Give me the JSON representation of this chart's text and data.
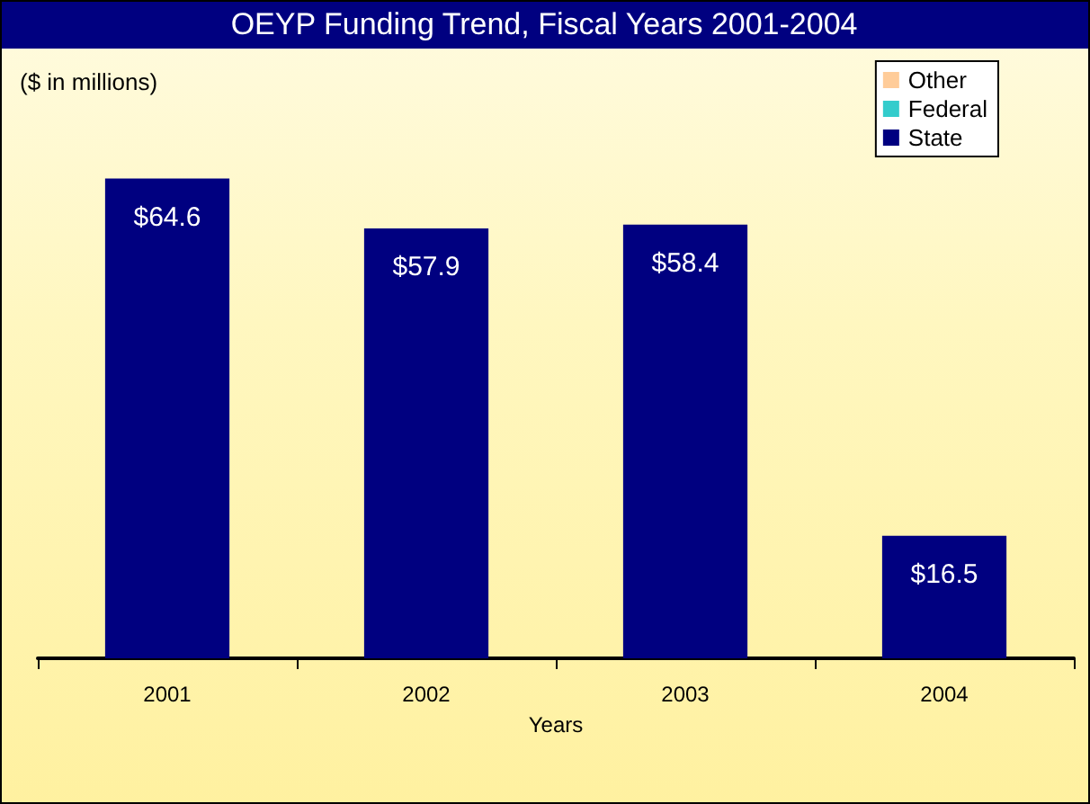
{
  "chart_data": {
    "type": "bar",
    "title": "OEYP Funding Trend, Fiscal Years 2001-2004",
    "xlabel": "Years",
    "annotations": [
      "($ in millions)"
    ],
    "categories": [
      "2001",
      "2002",
      "2003",
      "2004"
    ],
    "stacked": true,
    "legend": "top right",
    "grid": false,
    "series": [
      {
        "name": "State",
        "color": "#000080",
        "values": [
          64.6,
          57.9,
          58.4,
          16.5
        ],
        "value_labels": [
          "$64.6",
          "$57.9",
          "$58.4",
          "$16.5"
        ]
      },
      {
        "name": "Federal",
        "color": "#33cccc",
        "values": [
          0,
          0,
          0,
          0
        ]
      },
      {
        "name": "Other",
        "color": "#ffcc99",
        "values": [
          0,
          0,
          0,
          0
        ]
      }
    ]
  }
}
